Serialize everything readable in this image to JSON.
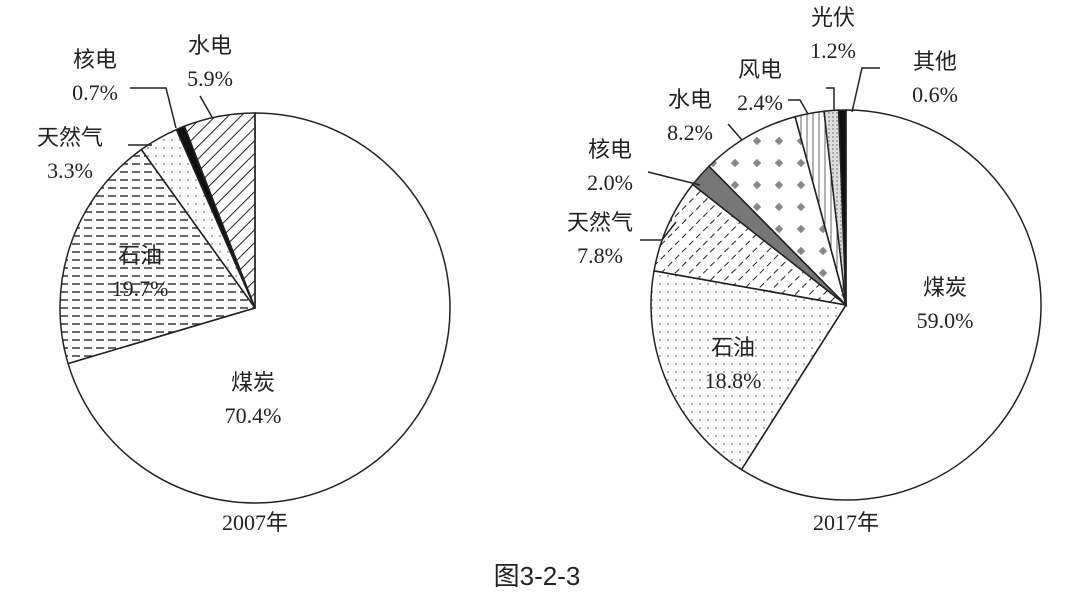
{
  "chart_data": [
    {
      "type": "pie",
      "title": "2007年",
      "categories": [
        "煤炭",
        "石油",
        "天然气",
        "核电",
        "水电"
      ],
      "values": [
        70.4,
        19.7,
        3.3,
        0.7,
        5.9
      ],
      "value_labels": [
        "70.4%",
        "19.7%",
        "3.3%",
        "0.7%",
        "5.9%"
      ]
    },
    {
      "type": "pie",
      "title": "2017年",
      "categories": [
        "煤炭",
        "石油",
        "天然气",
        "核电",
        "水电",
        "风电",
        "光伏",
        "其他"
      ],
      "values": [
        59.0,
        18.8,
        7.8,
        2.0,
        8.2,
        2.4,
        1.2,
        0.6
      ],
      "value_labels": [
        "59.0%",
        "18.8%",
        "7.8%",
        "2.0%",
        "8.2%",
        "2.4%",
        "1.2%",
        "0.6%"
      ]
    }
  ],
  "figure_caption": "图3-2-3"
}
